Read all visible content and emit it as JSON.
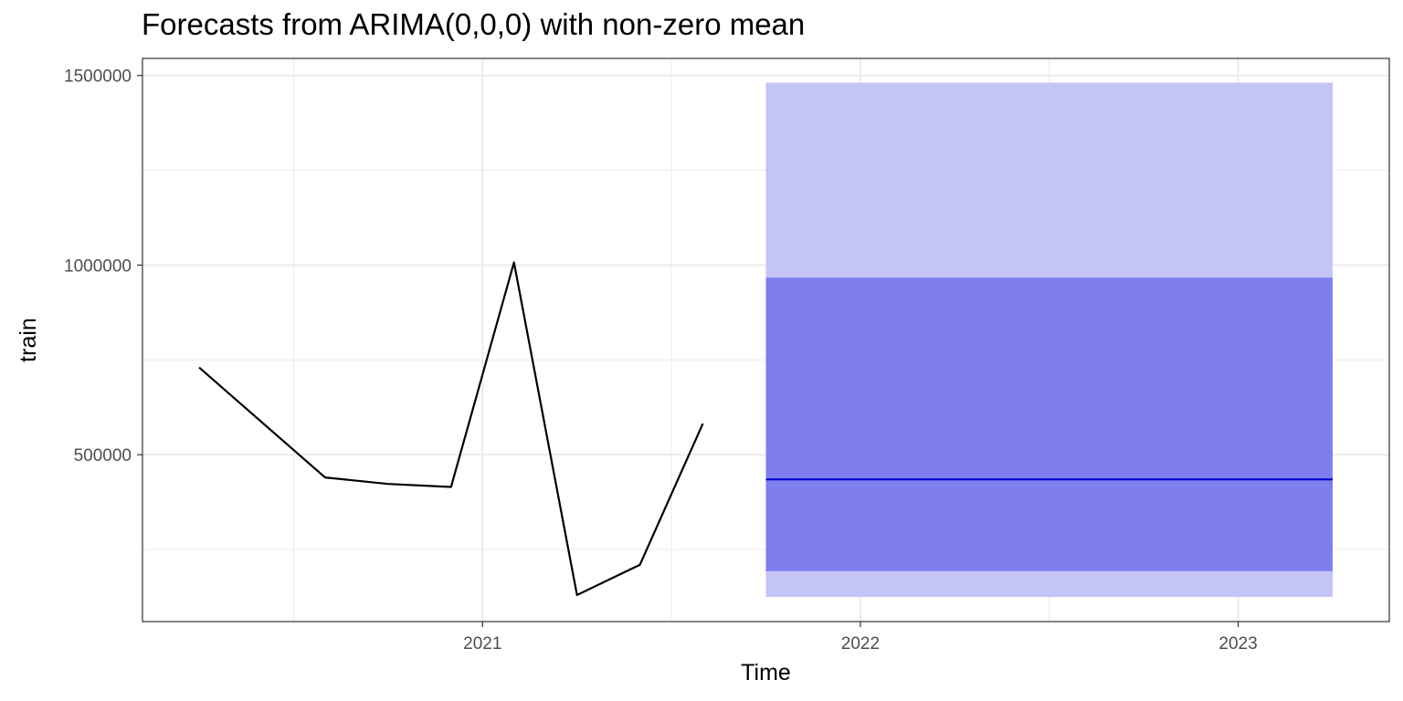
{
  "chart_data": {
    "type": "line",
    "title": "Forecasts from ARIMA(0,0,0) with non-zero mean",
    "xlabel": "Time",
    "ylabel": "train",
    "xlim": [
      2020.1,
      2023.4
    ],
    "ylim": [
      60000,
      1545000
    ],
    "x_ticks": [
      2021,
      2022,
      2023
    ],
    "x_tick_labels": [
      "2021",
      "2022",
      "2023"
    ],
    "x_minor_ticks": [
      2020.5,
      2021.5,
      2022.5
    ],
    "y_ticks": [
      500000,
      1000000,
      1500000
    ],
    "y_tick_labels": [
      "500000",
      "1000000",
      "1500000"
    ],
    "y_minor_ticks": [
      250000,
      750000,
      1250000
    ],
    "grid": true,
    "history": {
      "x": [
        2020.25,
        2020.5833,
        2020.75,
        2020.9167,
        2021.0833,
        2021.25,
        2021.4167,
        2021.5833
      ],
      "y": [
        730000,
        440000,
        423000,
        415000,
        1007000,
        130000,
        210000,
        582000
      ]
    },
    "forecast": {
      "x_start": 2021.75,
      "x_end": 2023.25,
      "mean": 435000,
      "pi80": [
        193000,
        967000
      ],
      "pi95": [
        125000,
        1481000
      ]
    },
    "colors": {
      "history_line": "#000000",
      "forecast_line": "#0000CC",
      "pi80_fill": "#7E7EEE",
      "pi95_fill": "#C4C4F5",
      "grid": "#EBEBEB",
      "panel_border": "#333333"
    }
  }
}
